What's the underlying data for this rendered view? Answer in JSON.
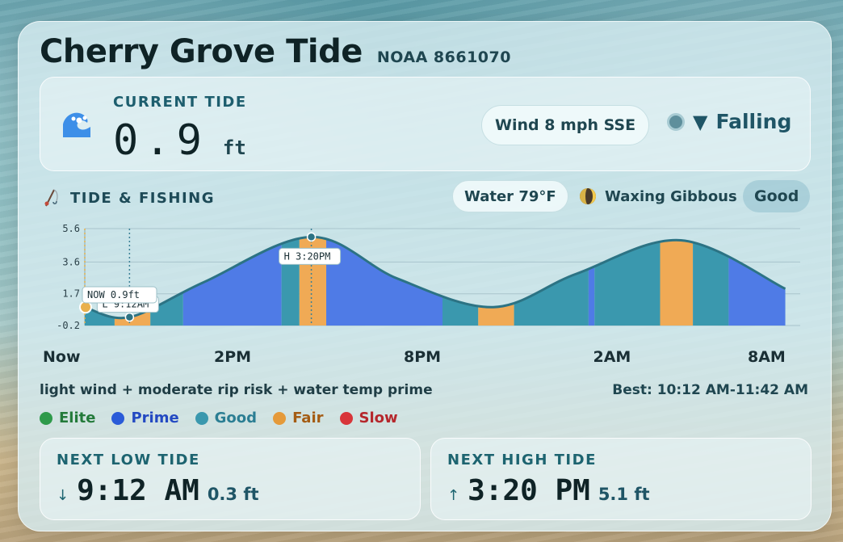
{
  "title": "Cherry Grove Tide",
  "station": "NOAA 8661070",
  "current": {
    "label": "CURRENT TIDE",
    "value": "0.9",
    "unit": "ft",
    "wind": "Wind 8 mph SSE",
    "trend": "Falling",
    "trend_icon": "down-triangle"
  },
  "section": {
    "label": "TIDE & FISHING",
    "water": "Water 79°F",
    "moon": "Waxing Gibbous",
    "rating": "Good"
  },
  "chart_data": {
    "type": "area",
    "y_ticks": [
      "5.6",
      "3.6",
      "1.7",
      "-0.2"
    ],
    "ylim": [
      -0.2,
      5.6
    ],
    "x_labels": [
      "Now",
      "2PM",
      "8PM",
      "2AM",
      "8AM"
    ],
    "x_hours": [
      0,
      6,
      12,
      18,
      24
    ],
    "tide_points": [
      {
        "h": 0,
        "y": 0.9
      },
      {
        "h": 1.5,
        "y": 0.3
      },
      {
        "h": 4,
        "y": 2.4
      },
      {
        "h": 7.6,
        "y": 5.1
      },
      {
        "h": 10.5,
        "y": 2.6
      },
      {
        "h": 13.7,
        "y": 0.9
      },
      {
        "h": 16.5,
        "y": 2.9
      },
      {
        "h": 20,
        "y": 4.9
      },
      {
        "h": 23.5,
        "y": 2.0
      }
    ],
    "now_label": "NOW  0.9ft",
    "low_label": "L 9:12AM",
    "high_label": "H 3:20PM",
    "low_hour": 1.5,
    "high_hour": 7.6,
    "bands": [
      {
        "from": 0,
        "to": 1.0,
        "rating": "Good"
      },
      {
        "from": 1.0,
        "to": 2.2,
        "rating": "Fair"
      },
      {
        "from": 2.2,
        "to": 3.3,
        "rating": "Good"
      },
      {
        "from": 3.3,
        "to": 6.6,
        "rating": "Prime"
      },
      {
        "from": 6.6,
        "to": 7.2,
        "rating": "Good"
      },
      {
        "from": 7.2,
        "to": 8.1,
        "rating": "Fair"
      },
      {
        "from": 8.1,
        "to": 12.0,
        "rating": "Prime"
      },
      {
        "from": 12.0,
        "to": 13.2,
        "rating": "Good"
      },
      {
        "from": 13.2,
        "to": 14.4,
        "rating": "Fair"
      },
      {
        "from": 14.4,
        "to": 16.9,
        "rating": "Good"
      },
      {
        "from": 16.9,
        "to": 17.1,
        "rating": "Prime"
      },
      {
        "from": 17.1,
        "to": 19.3,
        "rating": "Good"
      },
      {
        "from": 19.3,
        "to": 20.4,
        "rating": "Fair"
      },
      {
        "from": 20.4,
        "to": 21.6,
        "rating": "Good"
      },
      {
        "from": 21.6,
        "to": 23.5,
        "rating": "Prime"
      },
      {
        "from": 23.5,
        "to": 23.7,
        "rating": "Good"
      }
    ],
    "colors": {
      "Elite": "#2e9a4a",
      "Prime": "#4f7be6",
      "Good": "#3a98ae",
      "Fair": "#f0aa55",
      "Slow": "#d8353a",
      "line": "#2c7384",
      "grid": "#a9c4cc"
    }
  },
  "summary": "light wind + moderate rip risk + water temp prime",
  "best": "Best: 10:12 AM-11:42 AM",
  "legend": [
    {
      "label": "Elite",
      "color": "#2e9a4a",
      "text_color": "#237a3a"
    },
    {
      "label": "Prime",
      "color": "#2a5bd8",
      "text_color": "#2349c2"
    },
    {
      "label": "Good",
      "color": "#3a98ae",
      "text_color": "#2b7e93"
    },
    {
      "label": "Fair",
      "color": "#e59a3a",
      "text_color": "#a45c14"
    },
    {
      "label": "Slow",
      "color": "#d8353a",
      "text_color": "#b5272c"
    }
  ],
  "next_low": {
    "label": "NEXT LOW TIDE",
    "arrow": "↓",
    "time": "9:12 AM",
    "height": "0.3 ft"
  },
  "next_high": {
    "label": "NEXT HIGH TIDE",
    "arrow": "↑",
    "time": "3:20 PM",
    "height": "5.1 ft"
  }
}
